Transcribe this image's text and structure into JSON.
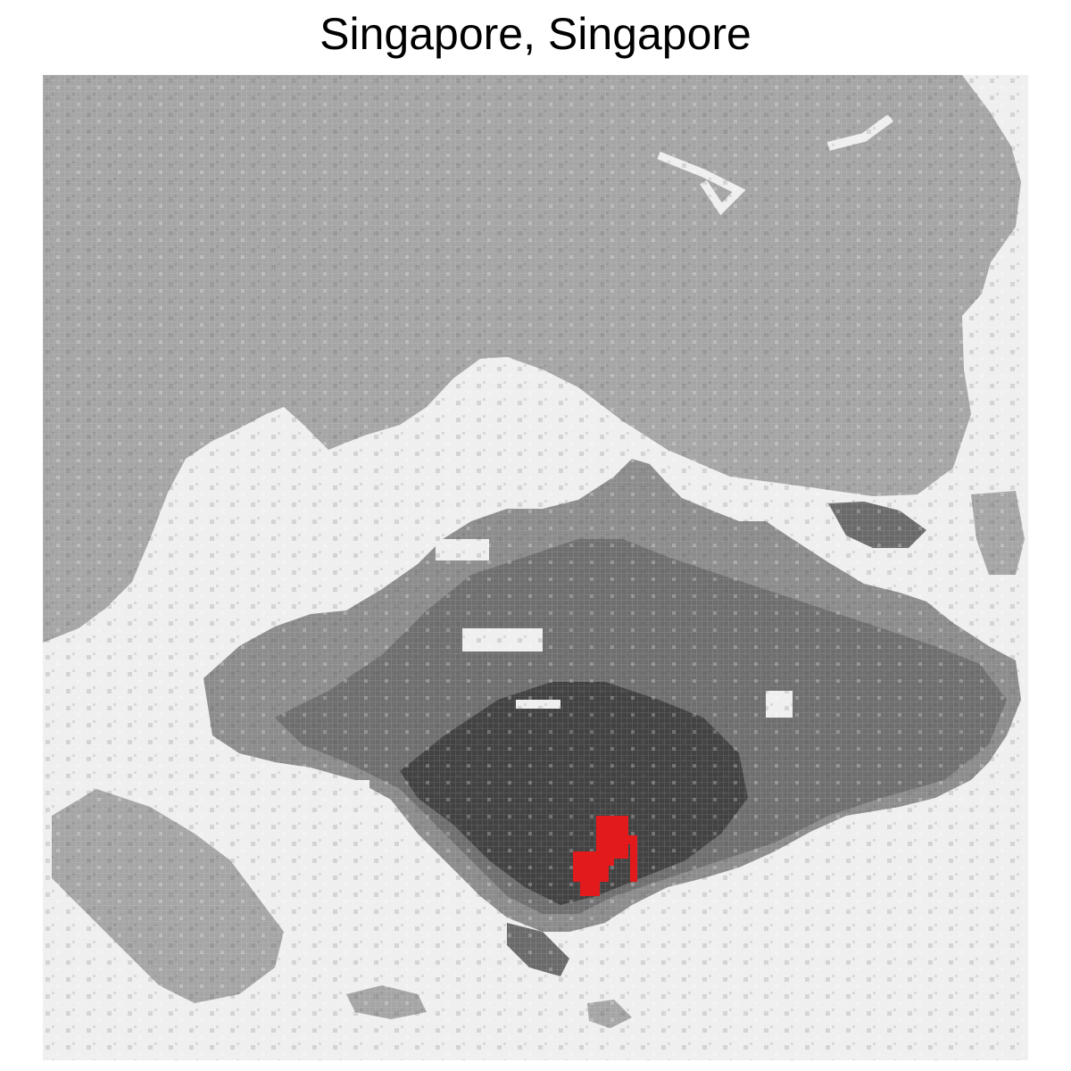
{
  "map": {
    "title": "Singapore, Singapore",
    "colors": {
      "water": "#efefef",
      "land": "#a5a5a5",
      "urban_light": "#8c8c8c",
      "urban_mid": "#6a6a6a",
      "urban_dense": "#3d3d3d",
      "highlight": "#e31a1c"
    }
  }
}
